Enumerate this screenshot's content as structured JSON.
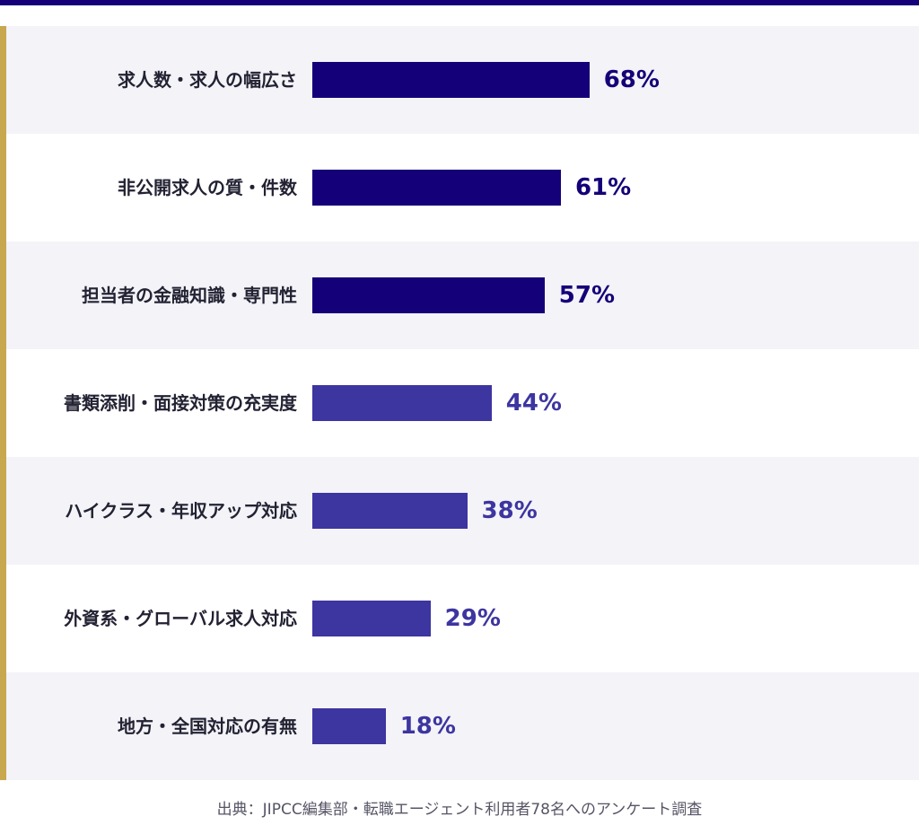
{
  "chart_data": {
    "type": "bar",
    "orientation": "horizontal",
    "categories": [
      "求人数・求人の幅広さ",
      "非公開求人の質・件数",
      "担当者の金融知識・専門性",
      "書類添削・面接対策の充実度",
      "ハイクラス・年収アップ対応",
      "外資系・グローバル求人対応",
      "地方・全国対応の有無"
    ],
    "values": [
      68,
      61,
      57,
      44,
      38,
      29,
      18
    ],
    "value_labels": [
      "68%",
      "61%",
      "57%",
      "44%",
      "38%",
      "29%",
      "18%"
    ],
    "unit": "%",
    "xlim": [
      0,
      100
    ],
    "colors": {
      "top": "#140078",
      "rest": "#3d35a0"
    },
    "source": "出典：JIPCC編集部・転職エージェント利用者78名へのアンケート調査"
  }
}
